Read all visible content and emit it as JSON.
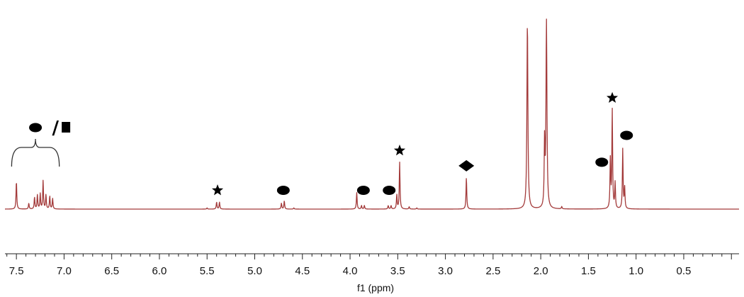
{
  "chart_data": {
    "type": "line",
    "title": "",
    "xlabel": "f1 (ppm)",
    "ylabel": "",
    "x_reversed": true,
    "xlim": [
      7.62,
      -0.08
    ],
    "ticks": [
      7.5,
      7.0,
      6.5,
      6.0,
      5.5,
      5.0,
      4.5,
      4.0,
      3.5,
      3.0,
      2.5,
      2.0,
      1.5,
      1.0,
      0.5
    ],
    "tick_labels": [
      "7.5",
      "7.0",
      "6.5",
      "6.0",
      "5.5",
      "5.0",
      "4.5",
      "4.0",
      "3.5",
      "3.0",
      "2.5",
      "2.0",
      "1.5",
      "1.0",
      "0.5"
    ],
    "line_color": "#a33a3a",
    "series": [
      {
        "peaks": [
          {
            "x": 7.5,
            "y": 0.24
          },
          {
            "x": 7.37,
            "y": 0.05
          },
          {
            "x": 7.31,
            "y": 0.1
          },
          {
            "x": 7.28,
            "y": 0.12
          },
          {
            "x": 7.25,
            "y": 0.13
          },
          {
            "x": 7.22,
            "y": 0.24
          },
          {
            "x": 7.19,
            "y": 0.12
          },
          {
            "x": 7.15,
            "y": 0.11
          },
          {
            "x": 7.12,
            "y": 0.09
          },
          {
            "x": 5.5,
            "y": 0.01
          },
          {
            "x": 5.4,
            "y": 0.06
          },
          {
            "x": 5.37,
            "y": 0.06
          },
          {
            "x": 4.72,
            "y": 0.05
          },
          {
            "x": 4.69,
            "y": 0.07
          },
          {
            "x": 4.59,
            "y": 0.01
          },
          {
            "x": 3.93,
            "y": 0.14
          },
          {
            "x": 3.88,
            "y": 0.03
          },
          {
            "x": 3.85,
            "y": 0.03
          },
          {
            "x": 3.6,
            "y": 0.03
          },
          {
            "x": 3.57,
            "y": 0.03
          },
          {
            "x": 3.51,
            "y": 0.12
          },
          {
            "x": 3.48,
            "y": 0.4
          },
          {
            "x": 3.38,
            "y": 0.02
          },
          {
            "x": 3.3,
            "y": 0.01
          },
          {
            "x": 2.78,
            "y": 0.27
          },
          {
            "x": 2.14,
            "y": 1.6
          },
          {
            "x": 1.96,
            "y": 0.55
          },
          {
            "x": 1.94,
            "y": 1.6
          },
          {
            "x": 1.78,
            "y": 0.02
          },
          {
            "x": 1.27,
            "y": 0.42
          },
          {
            "x": 1.25,
            "y": 0.84
          },
          {
            "x": 1.22,
            "y": 0.22
          },
          {
            "x": 1.14,
            "y": 0.51
          },
          {
            "x": 1.12,
            "y": 0.18
          }
        ]
      }
    ],
    "annotations": [
      {
        "symbol": "oval",
        "x": 7.3,
        "level": 1.0
      },
      {
        "symbol": "slash",
        "x": 7.09,
        "level": 1.0,
        "text": "/"
      },
      {
        "symbol": "square",
        "x": 6.98,
        "level": 1.0
      },
      {
        "symbol": "bracket",
        "x_start": 7.55,
        "x_end": 7.05
      },
      {
        "symbol": "star",
        "x": 5.39,
        "level": 0.1
      },
      {
        "symbol": "oval",
        "x": 4.7,
        "level": 0.1
      },
      {
        "symbol": "oval",
        "x": 3.86,
        "level": 0.1
      },
      {
        "symbol": "oval",
        "x": 3.59,
        "level": 0.1
      },
      {
        "symbol": "star",
        "x": 3.48,
        "level": 0.44
      },
      {
        "symbol": "diamond",
        "x": 2.78,
        "level": 0.31
      },
      {
        "symbol": "oval",
        "x": 1.36,
        "level": 0.34
      },
      {
        "symbol": "star",
        "x": 1.25,
        "level": 0.89
      },
      {
        "symbol": "oval",
        "x": 1.1,
        "level": 0.57
      }
    ]
  }
}
